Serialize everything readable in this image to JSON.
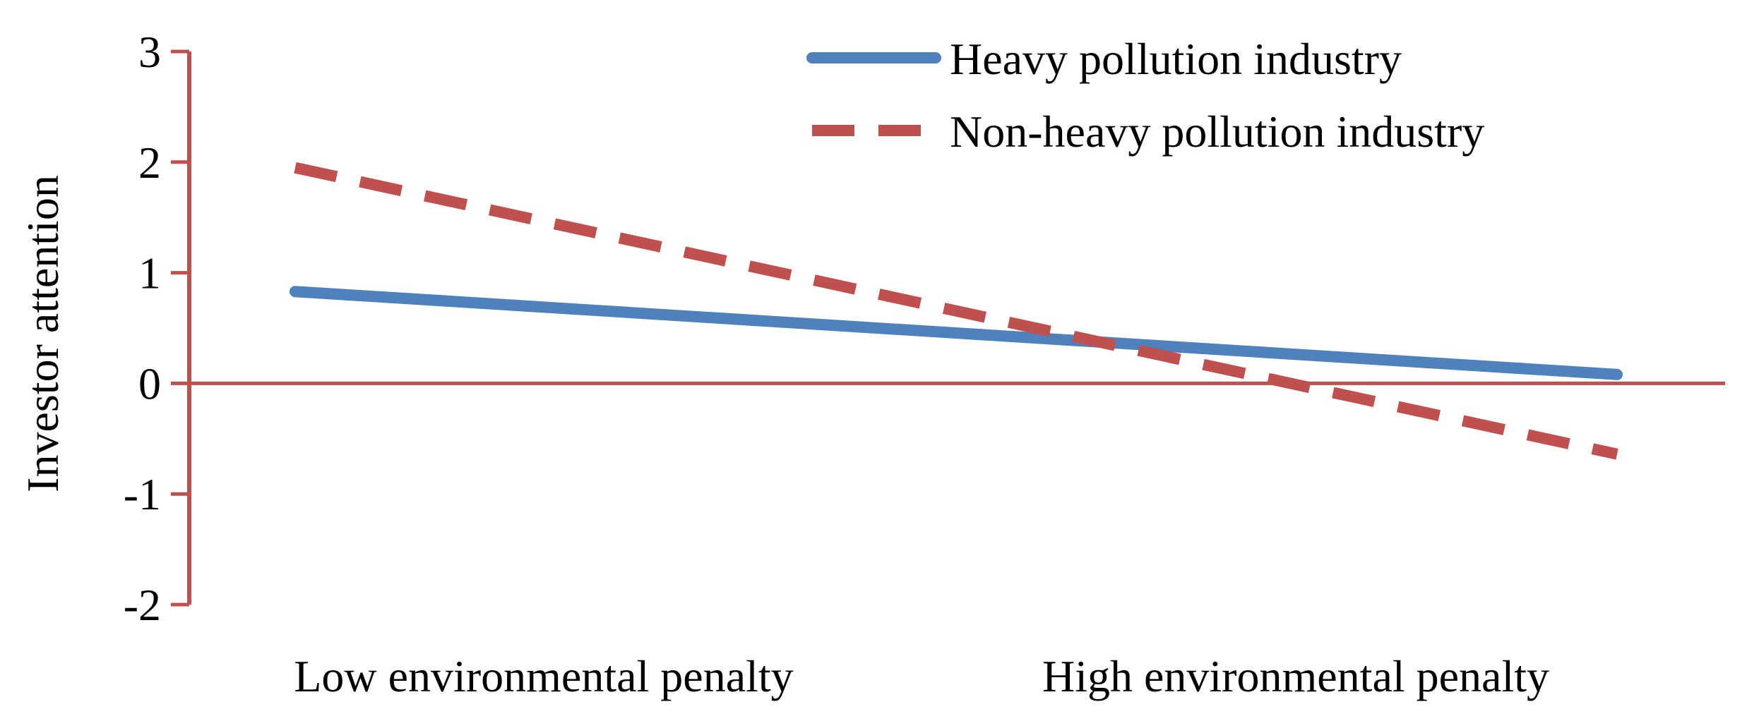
{
  "chart_data": {
    "type": "line",
    "categories": [
      "Low environmental penalty",
      "High environmental penalty"
    ],
    "series": [
      {
        "name": "Heavy pollution industry",
        "values": [
          0.83,
          0.08
        ],
        "color": "#4f81bd",
        "style": "solid"
      },
      {
        "name": "Non-heavy pollution industry",
        "values": [
          1.95,
          -0.64
        ],
        "color": "#c0504d",
        "style": "dashed"
      }
    ],
    "title": "",
    "xlabel": "",
    "ylabel": "Investor attention",
    "ylim": [
      -2,
      3
    ],
    "yticks": [
      "3",
      "2",
      "1",
      "0",
      "-1",
      "-2"
    ],
    "grid": false,
    "legend_position": "top-right",
    "axis_color": "#c0504d"
  }
}
